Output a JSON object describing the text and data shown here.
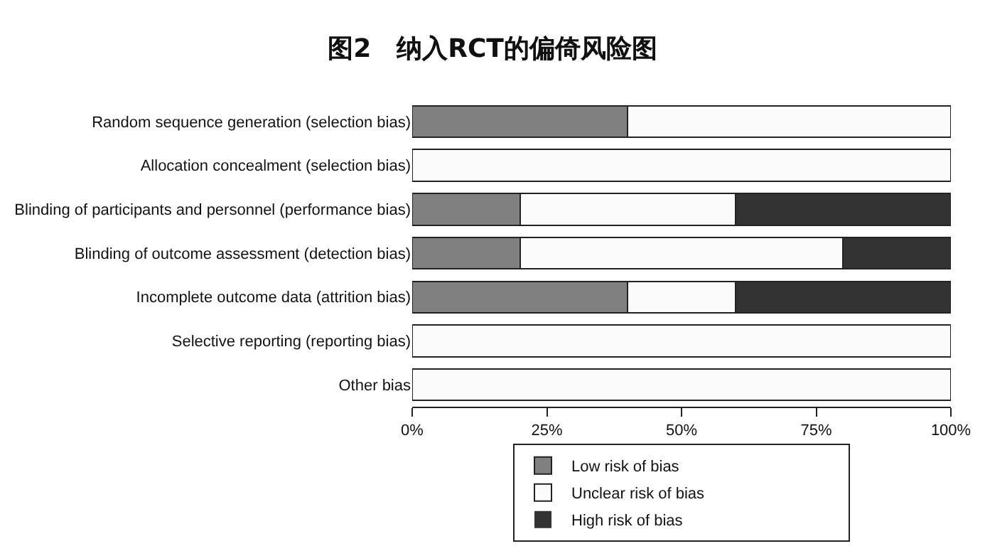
{
  "chart_data": {
    "type": "bar",
    "orientation": "horizontal",
    "stacked": true,
    "title": "图2　纳入RCT的偏倚风险图",
    "categories": [
      "Random sequence generation (selection bias)",
      "Allocation concealment (selection bias)",
      "Blinding of participants and personnel (performance bias)",
      "Blinding of outcome assessment (detection bias)",
      "Incomplete outcome data (attrition bias)",
      "Selective reporting (reporting bias)",
      "Other bias"
    ],
    "series": [
      {
        "name": "Low risk of bias",
        "color": "#808080",
        "values": [
          40,
          0,
          20,
          20,
          40,
          0,
          0
        ]
      },
      {
        "name": "Unclear risk of bias",
        "color": "#fbfbfb",
        "values": [
          60,
          100,
          40,
          60,
          20,
          100,
          100
        ]
      },
      {
        "name": "High risk of bias",
        "color": "#333333",
        "values": [
          0,
          0,
          40,
          20,
          40,
          0,
          0
        ]
      }
    ],
    "xlim": [
      0,
      100
    ],
    "xticks": [
      {
        "value": 0,
        "label": "0%"
      },
      {
        "value": 25,
        "label": "25%"
      },
      {
        "value": 50,
        "label": "50%"
      },
      {
        "value": 75,
        "label": "75%"
      },
      {
        "value": 100,
        "label": "100%"
      }
    ],
    "legend": "bottom"
  }
}
